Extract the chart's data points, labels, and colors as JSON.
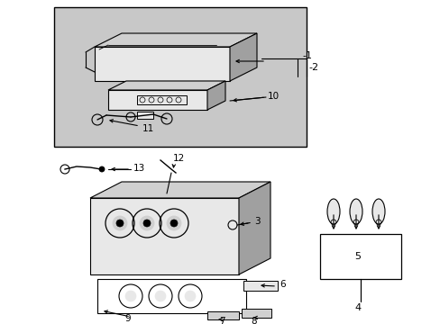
{
  "fig_bg": "#ffffff",
  "box_bg": "#c8c8c8",
  "white": "#ffffff",
  "black": "#000000",
  "light_gray": "#e8e8e8",
  "mid_gray": "#d0d0d0",
  "dark_gray": "#a0a0a0"
}
